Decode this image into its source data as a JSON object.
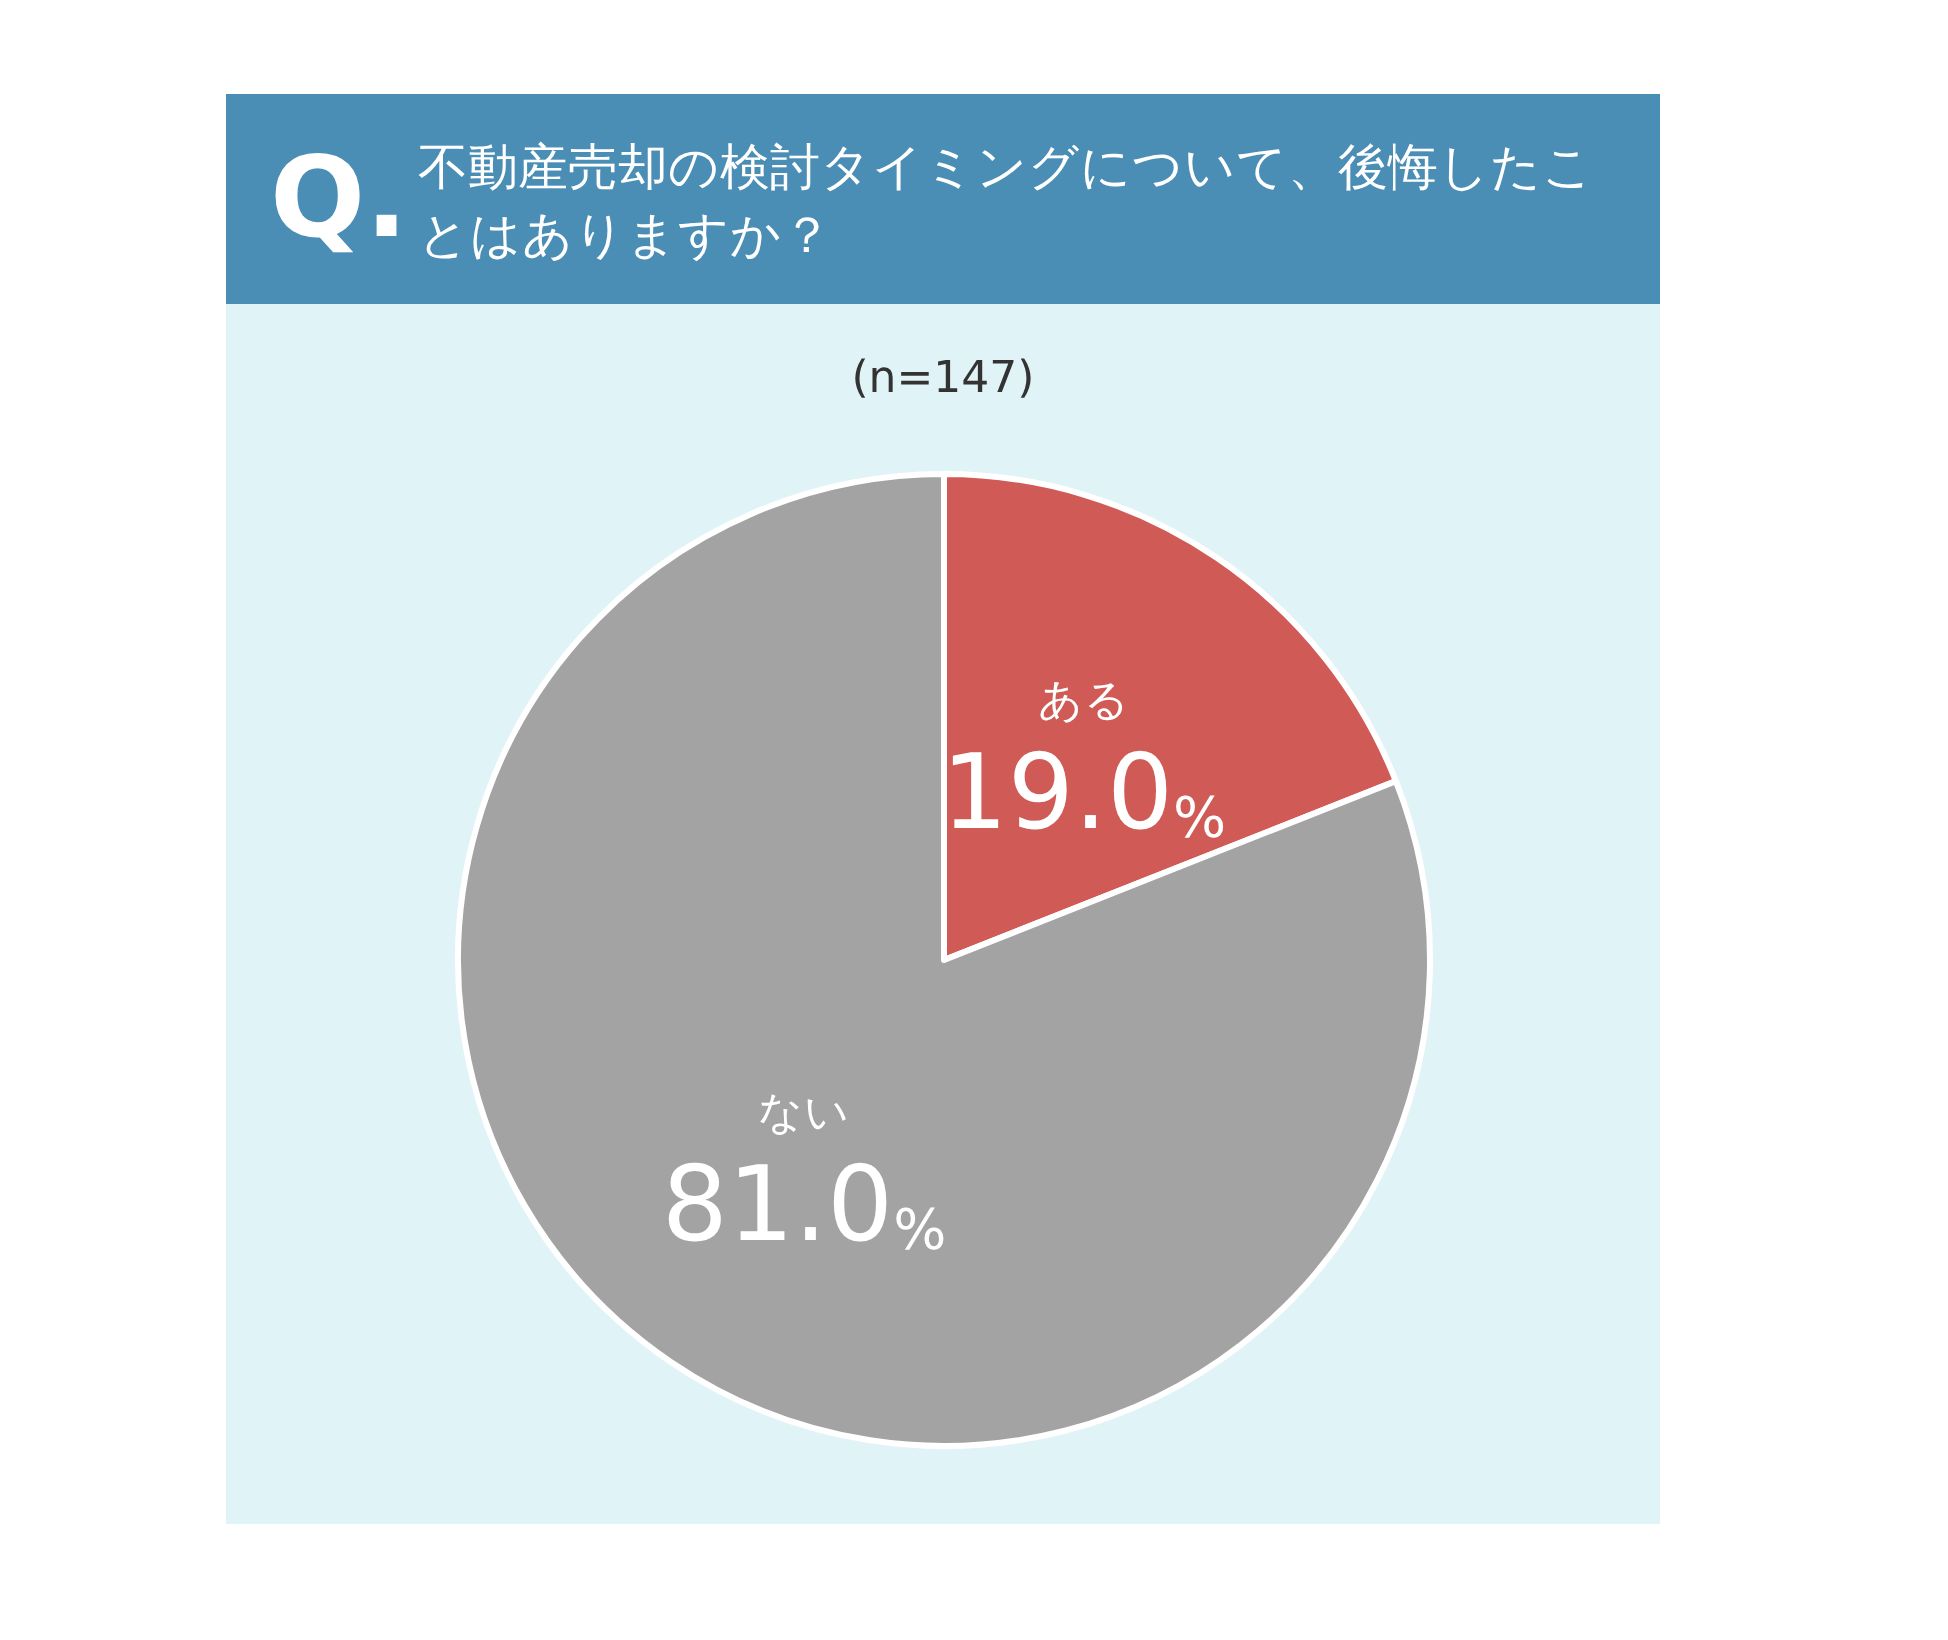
{
  "chart_data": {
    "type": "pie",
    "title": "不動産売却の検討タイミングについて、後悔したことはありますか？",
    "annotations": [
      "Q.",
      "(n=147)"
    ],
    "categories": [
      "ある",
      "ない"
    ],
    "values": [
      19.0,
      81.0
    ],
    "colors": [
      "#d05a55",
      "#a3a3a3"
    ],
    "value_labels": [
      "19.0%",
      "81.0%"
    ],
    "legend": false
  }
}
